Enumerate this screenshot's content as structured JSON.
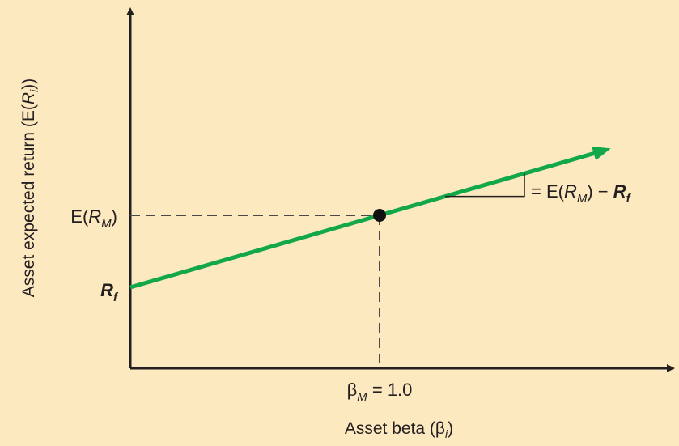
{
  "chart_data": {
    "type": "line",
    "title": "",
    "xlabel": {
      "prefix": "Asset beta (β",
      "sub": "i",
      "suffix": ")"
    },
    "ylabel": {
      "prefix": "Asset expected return (E(",
      "var": "R",
      "sub": "i",
      "suffix": "))"
    },
    "grid": false,
    "legend": "none",
    "x_tick": {
      "symbol": "β",
      "sub": "M",
      "rest": " = 1.0"
    },
    "y_ticks": [
      {
        "id": "market",
        "prefix": "E(",
        "var": "R",
        "sub": "M",
        "suffix": ")"
      },
      {
        "id": "riskfree",
        "prefix": "",
        "var": "R",
        "sub": "f",
        "suffix": ""
      }
    ],
    "series": [
      {
        "x": [
          0,
          1.0,
          1.93
        ],
        "y": [
          "R_f",
          "E(R_M)",
          "extended"
        ]
      }
    ],
    "market_point": {
      "x": 1.0,
      "y": "E(R_M)"
    },
    "slope_annotation": {
      "prefix": "= E(",
      "var": "R",
      "sub": "M",
      "mid": ") − ",
      "var2": "R",
      "sub2": "f"
    },
    "colors": {
      "background": "#fde9c0",
      "line": "#12a84a",
      "axis": "#231f20",
      "guide": "#4a4a4a"
    }
  }
}
